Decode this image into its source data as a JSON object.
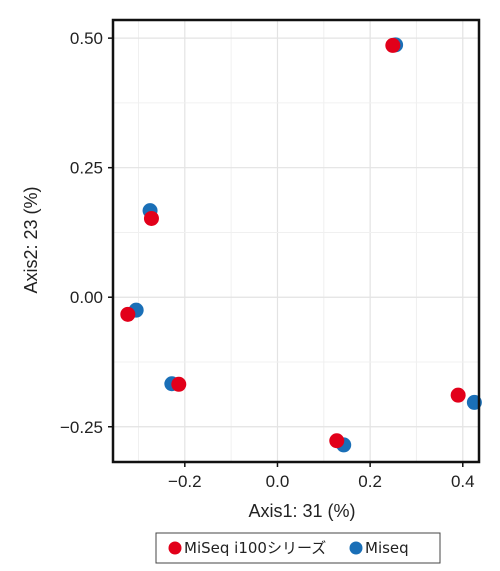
{
  "chart_data": {
    "type": "scatter",
    "xlabel": "Axis1: 31 (%)",
    "ylabel": "Axis2:  23 (%)",
    "xlim": [
      -0.355,
      0.435
    ],
    "ylim": [
      -0.318,
      0.535
    ],
    "x_ticks": [
      -0.2,
      0.0,
      0.2,
      0.4
    ],
    "x_tick_labels": [
      "−0.2",
      "0.0",
      "0.2",
      "0.4"
    ],
    "y_ticks": [
      0.5,
      0.25,
      0.0,
      -0.25
    ],
    "y_tick_labels": [
      "0.50",
      "0.25",
      "0.00",
      "−0.25"
    ],
    "grid": true,
    "legend_position": "bottom",
    "series": [
      {
        "name": "Miseq",
        "color": "#1a6fb7",
        "points": [
          {
            "x": 0.255,
            "y": 0.487
          },
          {
            "x": -0.275,
            "y": 0.167
          },
          {
            "x": -0.305,
            "y": -0.025
          },
          {
            "x": -0.228,
            "y": -0.167
          },
          {
            "x": 0.143,
            "y": -0.285
          },
          {
            "x": 0.425,
            "y": -0.203
          }
        ]
      },
      {
        "name": "MiSeq i100シリーズ",
        "color": "#e2001a",
        "points": [
          {
            "x": 0.249,
            "y": 0.486
          },
          {
            "x": -0.272,
            "y": 0.152
          },
          {
            "x": -0.323,
            "y": -0.033
          },
          {
            "x": -0.213,
            "y": -0.168
          },
          {
            "x": 0.128,
            "y": -0.277
          },
          {
            "x": 0.39,
            "y": -0.189
          }
        ]
      }
    ],
    "legend": [
      {
        "label": "MiSeq i100シリーズ",
        "color": "#e2001a"
      },
      {
        "label": "Miseq",
        "color": "#1a6fb7"
      }
    ]
  }
}
